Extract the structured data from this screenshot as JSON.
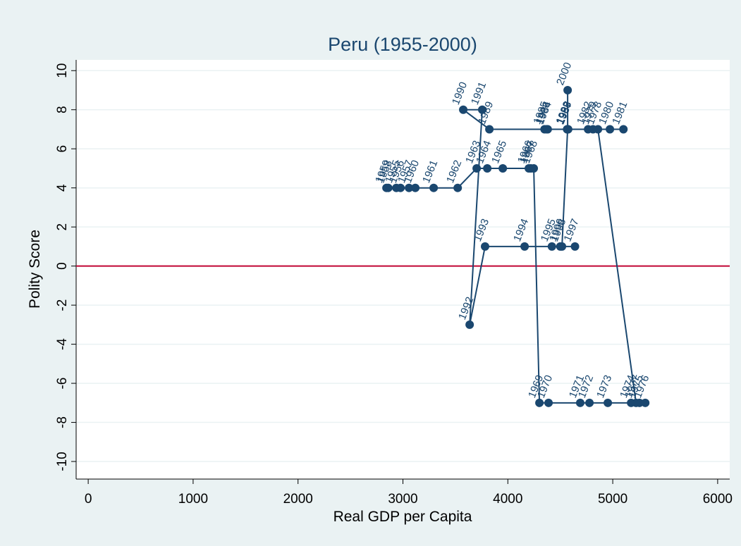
{
  "chart_data": {
    "type": "scatter",
    "connect": true,
    "title": "Peru (1955-2000)",
    "xlabel": "Real GDP per Capita",
    "ylabel": "Polity Score",
    "color": "#1a476f",
    "x": [
      2937,
      2977,
      3058,
      2860,
      2843,
      3118,
      3293,
      3522,
      3703,
      3804,
      3952,
      4200,
      4220,
      4247,
      4301,
      4388,
      4690,
      4778,
      4953,
      5175,
      5255,
      5310,
      5222,
      4859,
      4812,
      4973,
      5102,
      4765,
      4570,
      4380,
      4350,
      4370,
      4575,
      4565,
      3824,
      3575,
      3756,
      3636,
      3783,
      4160,
      4420,
      4500,
      4640,
      4516,
      4570,
      4570
    ],
    "y": [
      4,
      4,
      4,
      4,
      4,
      4,
      4,
      4,
      5,
      5,
      5,
      5,
      5,
      5,
      -7,
      -7,
      -7,
      -7,
      -7,
      -7,
      -7,
      -7,
      -7,
      7,
      7,
      7,
      7,
      7,
      7,
      7,
      7,
      7,
      7,
      7,
      7,
      8,
      8,
      -3,
      1,
      1,
      1,
      1,
      1,
      1,
      7,
      9
    ],
    "point_labels": [
      "1955",
      "1956",
      "1957",
      "1958",
      "1959",
      "1960",
      "1961",
      "1962",
      "1963",
      "1964",
      "1965",
      "1966",
      "1967",
      "1968",
      "1969",
      "1970",
      "1971",
      "1972",
      "1973",
      "1974",
      "1975",
      "1976",
      "1977",
      "1978",
      "1979",
      "1980",
      "1981",
      "1982",
      "1983",
      "1984",
      "1985",
      "1986",
      "1987",
      "1988",
      "1989",
      "1990",
      "1991",
      "1992",
      "1993",
      "1994",
      "1995",
      "1996",
      "1997",
      "1998",
      "1999",
      "2000"
    ],
    "xlim": [
      -115,
      6115
    ],
    "ylim": [
      -10.9,
      10.55
    ],
    "xticks": [
      0,
      1000,
      2000,
      3000,
      4000,
      5000,
      6000
    ],
    "yticks": [
      -10,
      -8,
      -6,
      -4,
      -2,
      0,
      2,
      4,
      6,
      8,
      10
    ],
    "grid": true,
    "reference_line": {
      "y": 0,
      "color": "#c10534"
    }
  }
}
